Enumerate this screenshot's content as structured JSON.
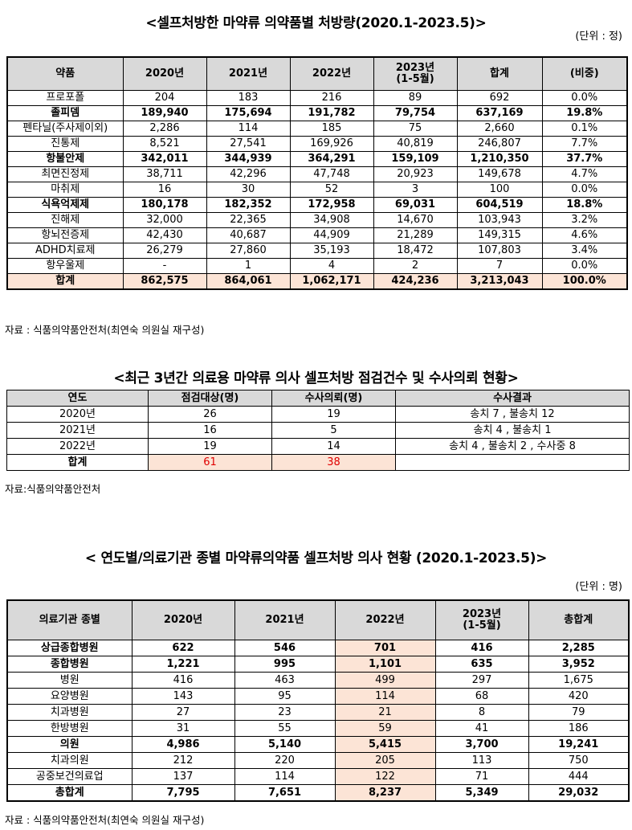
{
  "table1": {
    "title": "<셀프처방한 마약류 의약품별 처방량(2020.1-2023.5)>",
    "unit": "(단위 : 정)",
    "headers": [
      "약품",
      "2020년",
      "2021년",
      "2022년",
      "2023년\n(1-5월)",
      "합계",
      "(비중)"
    ],
    "rows": [
      {
        "cells": [
          "프로포폴",
          "204",
          "183",
          "216",
          "89",
          "692",
          "0.0%"
        ],
        "bold": false
      },
      {
        "cells": [
          "졸피뎀",
          "189,940",
          "175,694",
          "191,782",
          "79,754",
          "637,169",
          "19.8%"
        ],
        "bold": true
      },
      {
        "cells": [
          "펜타닐(주사제이외)",
          "2,286",
          "114",
          "185",
          "75",
          "2,660",
          "0.1%"
        ],
        "bold": false
      },
      {
        "cells": [
          "진통제",
          "8,521",
          "27,541",
          "169,926",
          "40,819",
          "246,807",
          "7.7%"
        ],
        "bold": false
      },
      {
        "cells": [
          "항불안제",
          "342,011",
          "344,939",
          "364,291",
          "159,109",
          "1,210,350",
          "37.7%"
        ],
        "bold": true
      },
      {
        "cells": [
          "최면진정제",
          "38,711",
          "42,296",
          "47,748",
          "20,923",
          "149,678",
          "4.7%"
        ],
        "bold": false
      },
      {
        "cells": [
          "마취제",
          "16",
          "30",
          "52",
          "3",
          "100",
          "0.0%"
        ],
        "bold": false
      },
      {
        "cells": [
          "식욕억제제",
          "180,178",
          "182,352",
          "172,958",
          "69,031",
          "604,519",
          "18.8%"
        ],
        "bold": true
      },
      {
        "cells": [
          "진해제",
          "32,000",
          "22,365",
          "34,908",
          "14,670",
          "103,943",
          "3.2%"
        ],
        "bold": false
      },
      {
        "cells": [
          "항뇌전증제",
          "42,430",
          "40,687",
          "44,909",
          "21,289",
          "149,315",
          "4.6%"
        ],
        "bold": false
      },
      {
        "cells": [
          "ADHD치료제",
          "26,279",
          "27,860",
          "35,193",
          "18,472",
          "107,803",
          "3.4%"
        ],
        "bold": false
      },
      {
        "cells": [
          "항우울제",
          "-",
          "1",
          "4",
          "2",
          "7",
          "0.0%"
        ],
        "bold": false
      }
    ],
    "total": [
      "합계",
      "862,575",
      "864,061",
      "1,062,171",
      "424,236",
      "3,213,043",
      "100.0%"
    ],
    "source": "자료 : 식품의약품안전처(최연숙 의원실 재구성)"
  },
  "table2": {
    "title": "<최근 3년간 의료용 마약류 의사 셀프처방 점검건수 및 수사의뢰 현황>",
    "headers": [
      "연도",
      "점검대상(명)",
      "수사의뢰(명)",
      "수사결과"
    ],
    "rows": [
      [
        "2020년",
        "26",
        "19",
        "송치 7 , 불송치 12"
      ],
      [
        "2021년",
        "16",
        "5",
        "송치 4 , 불송치 1"
      ],
      [
        "2022년",
        "19",
        "14",
        "송치 4 , 불송치 2 , 수사중 8"
      ]
    ],
    "total": [
      "합계",
      "61",
      "38",
      ""
    ],
    "source": "자료:식품의약품안전처"
  },
  "table3": {
    "title": "< 연도별/의료기관 종별 마약류의약품 셀프처방 의사 현황 (2020.1-2023.5)>",
    "unit": "(단위 : 명)",
    "headers": [
      "의료기관 종별",
      "2020년",
      "2021년",
      "2022년",
      "2023년\n(1-5월)",
      "총합계"
    ],
    "rows": [
      {
        "cells": [
          "상급종합병원",
          "622",
          "546",
          "701",
          "416",
          "2,285"
        ],
        "bold": true
      },
      {
        "cells": [
          "종합병원",
          "1,221",
          "995",
          "1,101",
          "635",
          "3,952"
        ],
        "bold": true
      },
      {
        "cells": [
          "병원",
          "416",
          "463",
          "499",
          "297",
          "1,675"
        ],
        "bold": false
      },
      {
        "cells": [
          "요양병원",
          "143",
          "95",
          "114",
          "68",
          "420"
        ],
        "bold": false
      },
      {
        "cells": [
          "치과병원",
          "27",
          "23",
          "21",
          "8",
          "79"
        ],
        "bold": false
      },
      {
        "cells": [
          "한방병원",
          "31",
          "55",
          "59",
          "41",
          "186"
        ],
        "bold": false
      },
      {
        "cells": [
          "의원",
          "4,986",
          "5,140",
          "5,415",
          "3,700",
          "19,241"
        ],
        "bold": true
      },
      {
        "cells": [
          "치과의원",
          "212",
          "220",
          "205",
          "113",
          "750"
        ],
        "bold": false
      },
      {
        "cells": [
          "공중보건의료업",
          "137",
          "114",
          "122",
          "71",
          "444"
        ],
        "bold": false
      }
    ],
    "total": [
      "총합계",
      "7,795",
      "7,651",
      "8,237",
      "5,349",
      "29,032"
    ],
    "source": "자료 : 식품의약품안전처(최연숙 의원실 재구성)"
  },
  "colors": {
    "header_bg": "#d9d9d9",
    "highlight_bg": "#fce4d6",
    "total_red": "#e00000"
  }
}
